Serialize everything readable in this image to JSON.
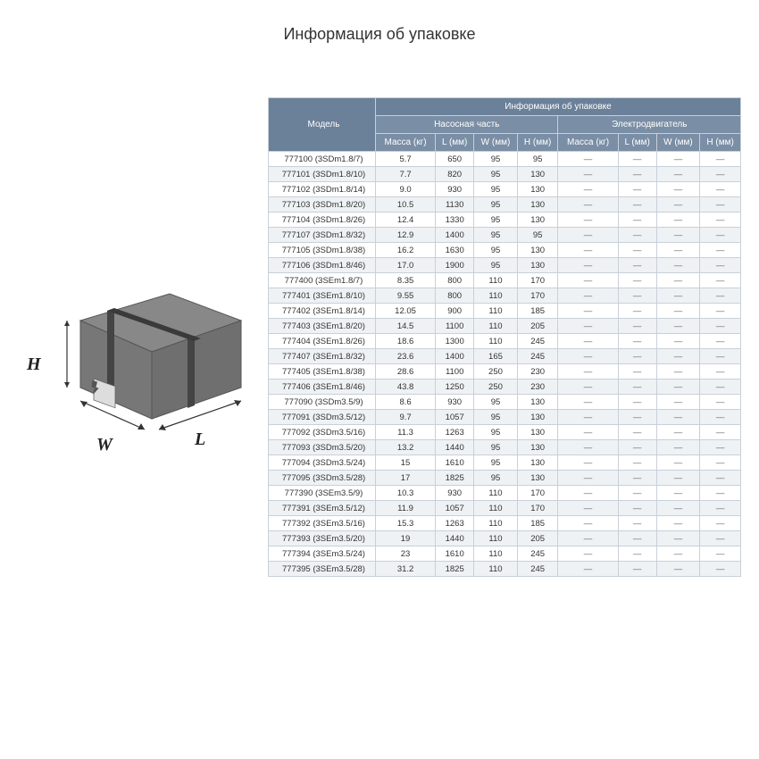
{
  "title": "Информация об упаковке",
  "box": {
    "labelH": "H",
    "labelW": "W",
    "labelL": "L"
  },
  "table": {
    "header": {
      "model": "Модель",
      "groupTop": "Информация об упаковке",
      "pump": "Насосная часть",
      "motor": "Электродвигатель",
      "mass": "Масса (кг)",
      "L": "L (мм)",
      "W": "W (мм)",
      "H": "H (мм)"
    },
    "rows": [
      {
        "model": "777100 (3SDm1.8/7)",
        "mass": "5.7",
        "L": "650",
        "W": "95",
        "H": "95"
      },
      {
        "model": "777101 (3SDm1.8/10)",
        "mass": "7.7",
        "L": "820",
        "W": "95",
        "H": "130"
      },
      {
        "model": "777102 (3SDm1.8/14)",
        "mass": "9.0",
        "L": "930",
        "W": "95",
        "H": "130"
      },
      {
        "model": "777103 (3SDm1.8/20)",
        "mass": "10.5",
        "L": "1130",
        "W": "95",
        "H": "130"
      },
      {
        "model": "777104 (3SDm1.8/26)",
        "mass": "12.4",
        "L": "1330",
        "W": "95",
        "H": "130"
      },
      {
        "model": "777107 (3SDm1.8/32)",
        "mass": "12.9",
        "L": "1400",
        "W": "95",
        "H": "95"
      },
      {
        "model": "777105 (3SDm1.8/38)",
        "mass": "16.2",
        "L": "1630",
        "W": "95",
        "H": "130"
      },
      {
        "model": "777106 (3SDm1.8/46)",
        "mass": "17.0",
        "L": "1900",
        "W": "95",
        "H": "130"
      },
      {
        "model": "777400 (3SEm1.8/7)",
        "mass": "8.35",
        "L": "800",
        "W": "110",
        "H": "170"
      },
      {
        "model": "777401 (3SEm1.8/10)",
        "mass": "9.55",
        "L": "800",
        "W": "110",
        "H": "170"
      },
      {
        "model": "777402 (3SEm1.8/14)",
        "mass": "12.05",
        "L": "900",
        "W": "110",
        "H": "185"
      },
      {
        "model": "777403 (3SEm1.8/20)",
        "mass": "14.5",
        "L": "1100",
        "W": "110",
        "H": "205"
      },
      {
        "model": "777404 (3SEm1.8/26)",
        "mass": "18.6",
        "L": "1300",
        "W": "110",
        "H": "245"
      },
      {
        "model": "777407 (3SEm1.8/32)",
        "mass": "23.6",
        "L": "1400",
        "W": "165",
        "H": "245"
      },
      {
        "model": "777405 (3SEm1.8/38)",
        "mass": "28.6",
        "L": "1100",
        "W": "250",
        "H": "230"
      },
      {
        "model": "777406 (3SEm1.8/46)",
        "mass": "43.8",
        "L": "1250",
        "W": "250",
        "H": "230"
      },
      {
        "model": "777090 (3SDm3.5/9)",
        "mass": "8.6",
        "L": "930",
        "W": "95",
        "H": "130"
      },
      {
        "model": "777091 (3SDm3.5/12)",
        "mass": "9.7",
        "L": "1057",
        "W": "95",
        "H": "130"
      },
      {
        "model": "777092 (3SDm3.5/16)",
        "mass": "11.3",
        "L": "1263",
        "W": "95",
        "H": "130"
      },
      {
        "model": "777093 (3SDm3.5/20)",
        "mass": "13.2",
        "L": "1440",
        "W": "95",
        "H": "130"
      },
      {
        "model": "777094 (3SDm3.5/24)",
        "mass": "15",
        "L": "1610",
        "W": "95",
        "H": "130"
      },
      {
        "model": "777095 (3SDm3.5/28)",
        "mass": "17",
        "L": "1825",
        "W": "95",
        "H": "130"
      },
      {
        "model": "777390 (3SEm3.5/9)",
        "mass": "10.3",
        "L": "930",
        "W": "110",
        "H": "170"
      },
      {
        "model": "777391 (3SEm3.5/12)",
        "mass": "11.9",
        "L": "1057",
        "W": "110",
        "H": "170"
      },
      {
        "model": "777392 (3SEm3.5/16)",
        "mass": "15.3",
        "L": "1263",
        "W": "110",
        "H": "185"
      },
      {
        "model": "777393 (3SEm3.5/20)",
        "mass": "19",
        "L": "1440",
        "W": "110",
        "H": "205"
      },
      {
        "model": "777394 (3SEm3.5/24)",
        "mass": "23",
        "L": "1610",
        "W": "110",
        "H": "245"
      },
      {
        "model": "777395 (3SEm3.5/28)",
        "mass": "31.2",
        "L": "1825",
        "W": "110",
        "H": "245"
      }
    ]
  },
  "dash": "—",
  "colors": {
    "headerBg": "#6b8099",
    "subHeaderBg": "#7a8ea5",
    "border": "#c8d0d8",
    "rowAlt": "#eef2f5"
  }
}
